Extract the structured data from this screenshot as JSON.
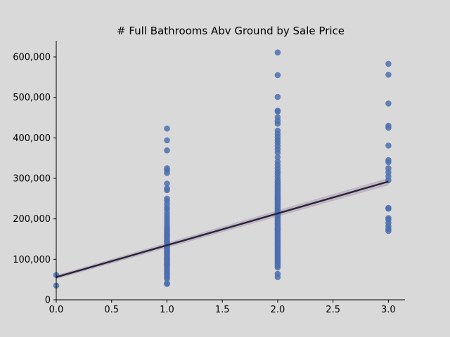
{
  "chart_data": {
    "type": "scatter",
    "title": "# Full Bathrooms Abv Ground by Sale Price",
    "xlabel": "",
    "ylabel": "",
    "xlim": [
      0,
      3.15
    ],
    "ylim": [
      0,
      640000
    ],
    "x_ticks": [
      0.0,
      0.5,
      1.0,
      1.5,
      2.0,
      2.5,
      3.0
    ],
    "x_tick_labels": [
      "0.0",
      "0.5",
      "1.0",
      "1.5",
      "2.0",
      "2.5",
      "3.0"
    ],
    "y_ticks": [
      0,
      100000,
      200000,
      300000,
      400000,
      500000,
      600000
    ],
    "y_tick_labels": [
      "0",
      "100,000",
      "200,000",
      "300,000",
      "400,000",
      "500,000",
      "600,000"
    ],
    "grid": false,
    "point_color": "#4c6faf",
    "line_color": "#2a2238",
    "band_color": "#b9b0bf",
    "regression": {
      "x": [
        0,
        3
      ],
      "y": [
        56000,
        292000
      ],
      "ci_lower_at_end": [
        51000,
        283000
      ],
      "ci_upper_at_end": [
        61000,
        301000
      ]
    },
    "series": [
      {
        "x": [
          0,
          0
        ],
        "y": [
          61000,
          35000
        ]
      },
      {
        "x": [
          1,
          1,
          1,
          1,
          1,
          1,
          1,
          1,
          1,
          1,
          1,
          1,
          1,
          1,
          1,
          1,
          1,
          1,
          1,
          1,
          1,
          1,
          1,
          1,
          1,
          1,
          1,
          1,
          1,
          1,
          1,
          1,
          1,
          1,
          1,
          1,
          1,
          1,
          1,
          1,
          1,
          1,
          1,
          1,
          1,
          1,
          1,
          1,
          1,
          1,
          1,
          1,
          1,
          1,
          1,
          1,
          1,
          1,
          1,
          1,
          1,
          1,
          1,
          1
        ],
        "y": [
          423000,
          394000,
          369000,
          325000,
          320000,
          313000,
          287000,
          275000,
          271000,
          250000,
          244000,
          236000,
          228000,
          222000,
          214000,
          207000,
          200000,
          193000,
          186000,
          180000,
          175000,
          171000,
          167000,
          163000,
          159000,
          155000,
          151000,
          147000,
          143000,
          139000,
          135000,
          132000,
          129000,
          126000,
          123000,
          120000,
          117000,
          114000,
          111000,
          108000,
          105000,
          102000,
          99000,
          96000,
          93000,
          90000,
          87000,
          84000,
          80000,
          76000,
          72000,
          68000,
          64000,
          60000,
          55000,
          52000,
          41000,
          39000,
          160000,
          145000,
          130000,
          118000,
          100000,
          88000
        ]
      },
      {
        "x": [
          2,
          2,
          2,
          2,
          2,
          2,
          2,
          2,
          2,
          2,
          2,
          2,
          2,
          2,
          2,
          2,
          2,
          2,
          2,
          2,
          2,
          2,
          2,
          2,
          2,
          2,
          2,
          2,
          2,
          2,
          2,
          2,
          2,
          2,
          2,
          2,
          2,
          2,
          2,
          2,
          2,
          2,
          2,
          2,
          2,
          2,
          2,
          2,
          2,
          2,
          2,
          2,
          2,
          2,
          2,
          2,
          2,
          2,
          2,
          2,
          2,
          2,
          2,
          2,
          2,
          2,
          2,
          2,
          2,
          2,
          2,
          2,
          2,
          2,
          2,
          2,
          2,
          2,
          2,
          2,
          2,
          2,
          2
        ],
        "y": [
          611000,
          555000,
          501000,
          467000,
          465000,
          451000,
          442000,
          435000,
          418000,
          410000,
          402000,
          395000,
          388000,
          380000,
          372000,
          364000,
          352000,
          341000,
          333000,
          325000,
          318000,
          312000,
          305000,
          298000,
          292000,
          288000,
          284000,
          280000,
          276000,
          272000,
          268000,
          264000,
          260000,
          256000,
          252000,
          248000,
          244000,
          240000,
          236000,
          232000,
          228000,
          224000,
          220000,
          216000,
          212000,
          208000,
          204000,
          200000,
          196000,
          192000,
          188000,
          184000,
          180000,
          176000,
          172000,
          168000,
          164000,
          160000,
          156000,
          152000,
          148000,
          144000,
          140000,
          136000,
          132000,
          128000,
          124000,
          120000,
          116000,
          112000,
          108000,
          104000,
          100000,
          96000,
          92000,
          88000,
          84000,
          80000,
          64000,
          56000,
          250000,
          210000,
          175000
        ]
      },
      {
        "x": [
          3,
          3,
          3,
          3,
          3,
          3,
          3,
          3,
          3,
          3,
          3,
          3,
          3,
          3,
          3,
          3,
          3,
          3,
          3,
          3
        ],
        "y": [
          583000,
          556000,
          485000,
          430000,
          425000,
          381000,
          345000,
          340000,
          325000,
          315000,
          305000,
          295000,
          227000,
          225000,
          202000,
          198000,
          190000,
          182000,
          175000,
          170000
        ]
      }
    ]
  }
}
